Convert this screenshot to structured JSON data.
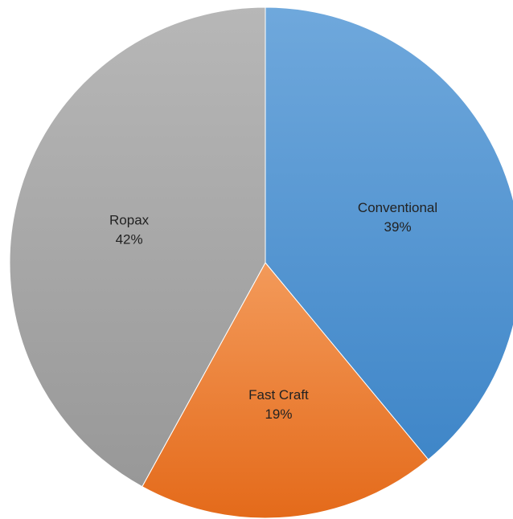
{
  "chart_data": {
    "type": "pie",
    "title": "",
    "start_angle_deg": 0,
    "direction": "clockwise",
    "slices": [
      {
        "name": "Conventional",
        "value": 39,
        "label": "39%",
        "color_top": "#6fa8dc",
        "color_bottom": "#3f86c8"
      },
      {
        "name": "Fast Craft",
        "value": 19,
        "label": "19%",
        "color_top": "#f39a5a",
        "color_bottom": "#e46a1a"
      },
      {
        "name": "Ropax",
        "value": 42,
        "label": "42%",
        "color_top": "#b7b7b7",
        "color_bottom": "#989898"
      }
    ],
    "legend": "none",
    "data_labels": "inside"
  }
}
